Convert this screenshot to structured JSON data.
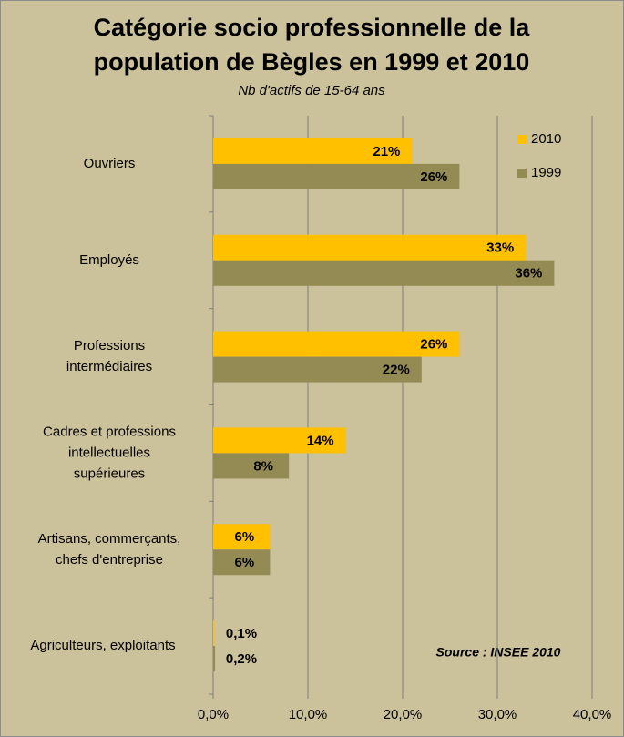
{
  "chart_data": {
    "type": "bar",
    "orientation": "horizontal",
    "title": "Catégorie socio professionnelle de la population de Bègles en 1999 et 2010",
    "subtitle": "Nb d'actifs de 15-64 ans",
    "annotation": "Source : INSEE 2010",
    "categories": [
      "Ouvriers",
      "Employés",
      "Professions\nintermédiaires",
      "Cadres et professions\nintellectuelles\nsupérieures",
      "Artisans, commerçants,\nchefs d'entreprise",
      "Agriculteurs, exploitants"
    ],
    "series": [
      {
        "name": "2010",
        "color": "#ffc000",
        "values": [
          21,
          33,
          26,
          14,
          6,
          0.1
        ],
        "value_labels": [
          "21%",
          "33%",
          "26%",
          "14%",
          "6%",
          "0,1%"
        ]
      },
      {
        "name": "1999",
        "color": "#948a54",
        "values": [
          26,
          36,
          22,
          8,
          6,
          0.2
        ],
        "value_labels": [
          "26%",
          "36%",
          "22%",
          "8%",
          "6%",
          "0,2%"
        ]
      }
    ],
    "xlim": [
      0,
      40
    ],
    "xticks": [
      {
        "value": 0,
        "label": "0,0%"
      },
      {
        "value": 10,
        "label": "10,0%"
      },
      {
        "value": 20,
        "label": "20,0%"
      },
      {
        "value": 30,
        "label": "30,0%"
      },
      {
        "value": 40,
        "label": "40,0%"
      }
    ],
    "grid": true,
    "legend": "top-right"
  }
}
